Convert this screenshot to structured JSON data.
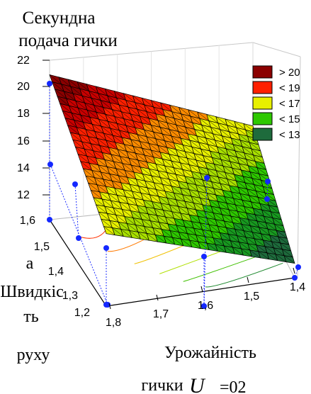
{
  "chart_data": {
    "type": "surface3d",
    "title": [
      "Секундна",
      "подача гички"
    ],
    "z_ticks": [
      "22",
      "20",
      "18",
      "16",
      "14",
      "12"
    ],
    "speed_ticks": [
      "1,6",
      "1,5",
      "1,4",
      "1,3",
      "1,2"
    ],
    "yield_ticks": [
      "1,8",
      "1,7",
      "1,6",
      "1,5",
      "1,4"
    ],
    "x_axis_label": "Урожайність",
    "x_axis_label_2": "гички",
    "x_axis_formula": "U",
    "x_axis_formula_tail": "=02",
    "y_axis_label": [
      "а",
      "Швидкіс",
      "ть",
      "руху"
    ],
    "speed_range": [
      1.2,
      1.6
    ],
    "yield_range": [
      1.4,
      1.8
    ],
    "zlim": [
      11,
      22
    ],
    "legend": {
      "placement": "top-right",
      "entries": [
        {
          "label": "> 20",
          "color": "#8b0000"
        },
        {
          "label": "< 19",
          "color": "#ff2000"
        },
        {
          "label": "< 17",
          "color": "#e8f000"
        },
        {
          "label": "< 15",
          "color": "#2ec800"
        },
        {
          "label": "< 13",
          "color": "#1e6b3c"
        }
      ]
    },
    "surface_corners": [
      {
        "speed": 1.6,
        "yield": 1.8,
        "value": 21.0
      },
      {
        "speed": 1.6,
        "yield": 1.4,
        "value": 16.0
      },
      {
        "speed": 1.2,
        "yield": 1.8,
        "value": 16.0
      },
      {
        "speed": 1.2,
        "yield": 1.4,
        "value": 12.0
      }
    ],
    "measured_points": [
      {
        "label": "p1",
        "z": 20.0
      },
      {
        "label": "p2",
        "z": 16.0
      },
      {
        "label": "p3",
        "z": 16.0
      },
      {
        "label": "p4",
        "z": 16.0
      },
      {
        "label": "p5",
        "z": 12.0
      }
    ]
  }
}
